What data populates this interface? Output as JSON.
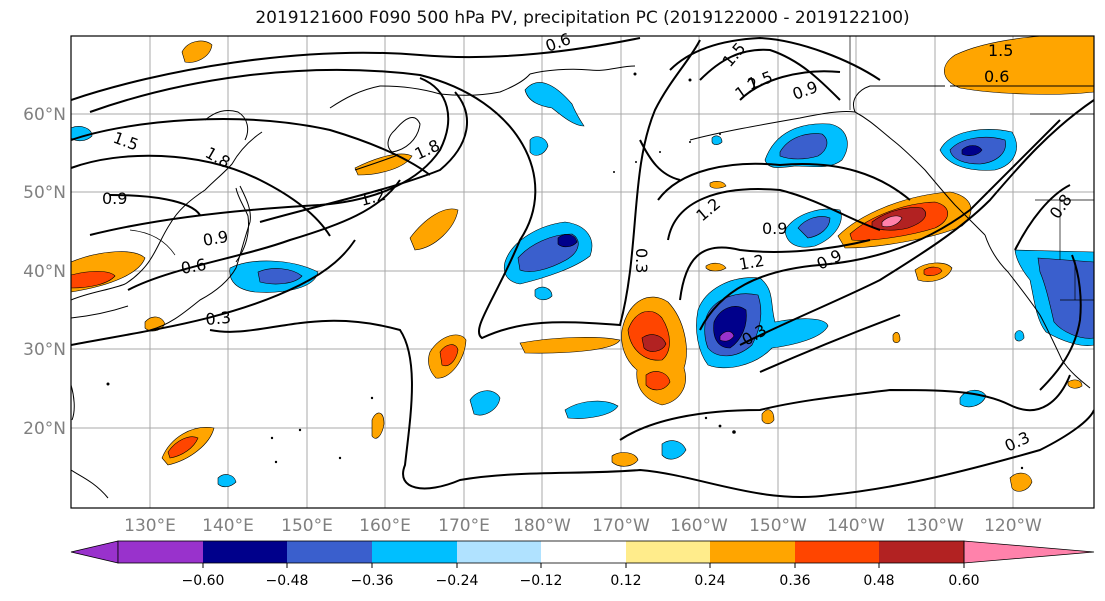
{
  "title": "2019121600 F090 500 hPa PV, precipitation PC (2019122000 - 2019122100)",
  "map": {
    "lon_labels": [
      "130°E",
      "140°E",
      "150°E",
      "160°E",
      "170°E",
      "180°W",
      "170°W",
      "160°W",
      "150°W",
      "140°W",
      "130°W",
      "120°W"
    ],
    "lat_labels": [
      "60°N",
      "50°N",
      "40°N",
      "30°N",
      "20°N"
    ],
    "grid": true,
    "contour_labels": [
      "0.6",
      "1.5",
      "1.2",
      "1.5",
      "0.9",
      "1.5",
      "0.6",
      "1.5",
      "1.8",
      "1.8",
      "0.9",
      "1.2",
      "0.9",
      "0.6",
      "0.3",
      "1.2",
      "0.9",
      "1.2",
      "0.9",
      "0.3",
      "0.3",
      "0.3",
      "0.8"
    ]
  },
  "colorbar": {
    "ticks": [
      "−0.60",
      "−0.48",
      "−0.36",
      "−0.24",
      "−0.12",
      "0.12",
      "0.24",
      "0.36",
      "0.48",
      "0.60"
    ],
    "colors": [
      "#9932CC",
      "#00008B",
      "#3A5FCD",
      "#00BFFF",
      "#B0E2FF",
      "#FFFFFF",
      "#FFEC8B",
      "#FFA500",
      "#FF4500",
      "#B22222",
      "#FF82AB"
    ]
  }
}
